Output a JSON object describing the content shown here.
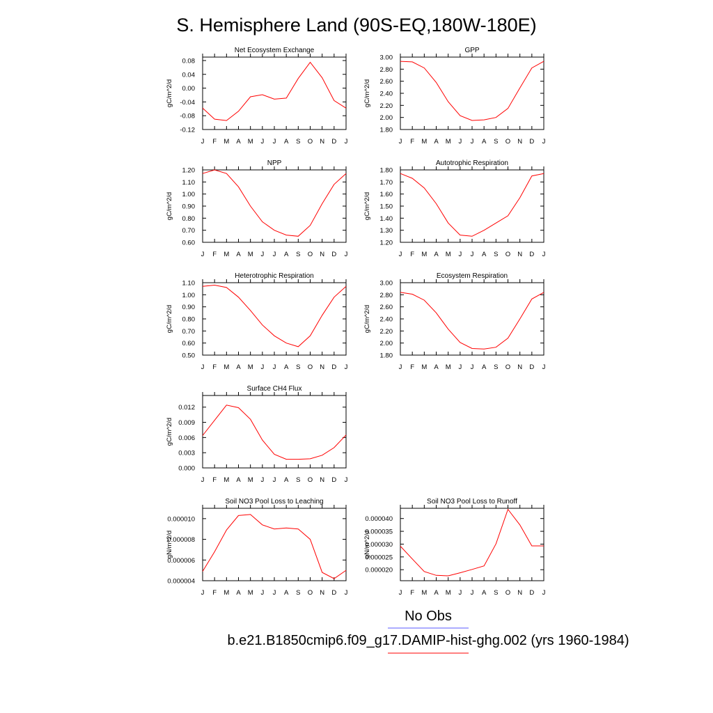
{
  "figure": {
    "title": "S. Hemisphere Land (90S-EQ,180W-180E)"
  },
  "legend": [
    {
      "label": "No Obs",
      "color": "#5a5aff"
    },
    {
      "label": "b.e21.B1850cmip6.f09_g17.DAMIP-hist-ghg.002 (yrs 1960-1984)",
      "color": "#ff0000"
    }
  ],
  "chart_data": [
    {
      "type": "line",
      "title": "Net Ecosystem Exchange",
      "ylabel": "gC/m^2/d",
      "categories": [
        "J",
        "F",
        "M",
        "A",
        "M",
        "J",
        "J",
        "A",
        "S",
        "O",
        "N",
        "D",
        "J"
      ],
      "ylim": [
        -0.12,
        0.09
      ],
      "yticks": [
        -0.12,
        -0.08,
        -0.04,
        0.0,
        0.04,
        0.08
      ],
      "ytick_labels": [
        "-0.12",
        "-0.08",
        "-0.04",
        "0.00",
        "0.04",
        "0.08"
      ],
      "series": [
        {
          "color": "#ff0000",
          "values": [
            -0.058,
            -0.09,
            -0.094,
            -0.067,
            -0.025,
            -0.019,
            -0.032,
            -0.029,
            0.028,
            0.075,
            0.03,
            -0.036,
            -0.058
          ]
        }
      ]
    },
    {
      "type": "line",
      "title": "GPP",
      "ylabel": "gC/m^2/d",
      "categories": [
        "J",
        "F",
        "M",
        "A",
        "M",
        "J",
        "J",
        "A",
        "S",
        "O",
        "N",
        "D",
        "J"
      ],
      "ylim": [
        1.8,
        3.0
      ],
      "yticks": [
        1.8,
        2.0,
        2.2,
        2.4,
        2.6,
        2.8,
        3.0
      ],
      "ytick_labels": [
        "1.80",
        "2.00",
        "2.20",
        "2.40",
        "2.60",
        "2.80",
        "3.00"
      ],
      "series": [
        {
          "color": "#ff0000",
          "values": [
            2.93,
            2.92,
            2.82,
            2.58,
            2.26,
            2.03,
            1.95,
            1.96,
            2.0,
            2.15,
            2.49,
            2.82,
            2.93
          ]
        }
      ]
    },
    {
      "type": "line",
      "title": "NPP",
      "ylabel": "gC/m^2/d",
      "categories": [
        "J",
        "F",
        "M",
        "A",
        "M",
        "J",
        "J",
        "A",
        "S",
        "O",
        "N",
        "D",
        "J"
      ],
      "ylim": [
        0.6,
        1.2
      ],
      "yticks": [
        0.6,
        0.7,
        0.8,
        0.9,
        1.0,
        1.1,
        1.2
      ],
      "ytick_labels": [
        "0.60",
        "0.70",
        "0.80",
        "0.90",
        "1.00",
        "1.10",
        "1.20"
      ],
      "series": [
        {
          "color": "#ff0000",
          "values": [
            1.17,
            1.2,
            1.17,
            1.06,
            0.9,
            0.77,
            0.7,
            0.66,
            0.65,
            0.74,
            0.92,
            1.08,
            1.17
          ]
        }
      ]
    },
    {
      "type": "line",
      "title": "Autotrophic Respiration",
      "ylabel": "gC/m^2/d",
      "categories": [
        "J",
        "F",
        "M",
        "A",
        "M",
        "J",
        "J",
        "A",
        "S",
        "O",
        "N",
        "D",
        "J"
      ],
      "ylim": [
        1.2,
        1.8
      ],
      "yticks": [
        1.2,
        1.3,
        1.4,
        1.5,
        1.6,
        1.7,
        1.8
      ],
      "ytick_labels": [
        "1.20",
        "1.30",
        "1.40",
        "1.50",
        "1.60",
        "1.70",
        "1.80"
      ],
      "series": [
        {
          "color": "#ff0000",
          "values": [
            1.77,
            1.73,
            1.65,
            1.52,
            1.36,
            1.26,
            1.25,
            1.3,
            1.36,
            1.42,
            1.57,
            1.75,
            1.77
          ]
        }
      ]
    },
    {
      "type": "line",
      "title": "Heterotrophic Respiration",
      "ylabel": "gC/m^2/d",
      "categories": [
        "J",
        "F",
        "M",
        "A",
        "M",
        "J",
        "J",
        "A",
        "S",
        "O",
        "N",
        "D",
        "J"
      ],
      "ylim": [
        0.5,
        1.1
      ],
      "yticks": [
        0.5,
        0.6,
        0.7,
        0.8,
        0.9,
        1.0,
        1.1
      ],
      "ytick_labels": [
        "0.50",
        "0.60",
        "0.70",
        "0.80",
        "0.90",
        "1.00",
        "1.10"
      ],
      "series": [
        {
          "color": "#ff0000",
          "values": [
            1.07,
            1.08,
            1.06,
            0.98,
            0.87,
            0.75,
            0.66,
            0.6,
            0.57,
            0.66,
            0.83,
            0.98,
            1.07
          ]
        }
      ]
    },
    {
      "type": "line",
      "title": "Ecosystem Respiration",
      "ylabel": "gC/m^2/d",
      "categories": [
        "J",
        "F",
        "M",
        "A",
        "M",
        "J",
        "J",
        "A",
        "S",
        "O",
        "N",
        "D",
        "J"
      ],
      "ylim": [
        1.8,
        3.0
      ],
      "yticks": [
        1.8,
        2.0,
        2.2,
        2.4,
        2.6,
        2.8,
        3.0
      ],
      "ytick_labels": [
        "1.80",
        "2.00",
        "2.20",
        "2.40",
        "2.60",
        "2.80",
        "3.00"
      ],
      "series": [
        {
          "color": "#ff0000",
          "values": [
            2.84,
            2.81,
            2.71,
            2.5,
            2.23,
            2.01,
            1.91,
            1.9,
            1.93,
            2.08,
            2.4,
            2.73,
            2.84
          ]
        }
      ]
    },
    {
      "type": "line",
      "title": "Surface CH4 Flux",
      "ylabel": "gC/m^2/d",
      "categories": [
        "J",
        "F",
        "M",
        "A",
        "M",
        "J",
        "J",
        "A",
        "S",
        "O",
        "N",
        "D",
        "J"
      ],
      "ylim": [
        0.0,
        0.0143
      ],
      "yticks": [
        0.0,
        0.003,
        0.006,
        0.009,
        0.012
      ],
      "ytick_labels": [
        "0.000",
        "0.003",
        "0.006",
        "0.009",
        "0.012"
      ],
      "series": [
        {
          "color": "#ff0000",
          "values": [
            0.0064,
            0.0094,
            0.0124,
            0.0119,
            0.0096,
            0.0055,
            0.0027,
            0.0017,
            0.0017,
            0.0018,
            0.0025,
            0.004,
            0.0065
          ]
        }
      ]
    },
    {
      "type": "line",
      "title": "Soil NO3 Pool Loss to Leaching",
      "ylabel": "gN/m^2/d",
      "categories": [
        "J",
        "F",
        "M",
        "A",
        "M",
        "J",
        "J",
        "A",
        "S",
        "O",
        "N",
        "D",
        "J"
      ],
      "ylim": [
        4e-06,
        1.1e-05
      ],
      "yticks": [
        4e-06,
        6e-06,
        8e-06,
        1e-05
      ],
      "ytick_labels": [
        "0.000004",
        "0.000006",
        "0.000008",
        "0.000010"
      ],
      "series": [
        {
          "color": "#ff0000",
          "values": [
            4.9e-06,
            6.8e-06,
            8.9e-06,
            1.03e-05,
            1.04e-05,
            9.4e-06,
            9e-06,
            9.1e-06,
            9e-06,
            8e-06,
            4.8e-06,
            4.2e-06,
            5e-06
          ]
        }
      ]
    },
    {
      "type": "line",
      "title": "Soil NO3 Pool Loss to Runoff",
      "ylabel": "gN/m^2/d",
      "categories": [
        "J",
        "F",
        "M",
        "A",
        "M",
        "J",
        "J",
        "A",
        "S",
        "O",
        "N",
        "D",
        "J"
      ],
      "ylim": [
        1.57e-05,
        4.4e-05
      ],
      "yticks": [
        2e-05,
        2.5e-05,
        3e-05,
        3.5e-05,
        4e-05
      ],
      "ytick_labels": [
        "0.000020",
        "0.000025",
        "0.000030",
        "0.000035",
        "0.000040"
      ],
      "series": [
        {
          "color": "#ff0000",
          "values": [
            2.92e-05,
            2.42e-05,
            1.93e-05,
            1.78e-05,
            1.76e-05,
            1.88e-05,
            2.01e-05,
            2.15e-05,
            3.01e-05,
            4.36e-05,
            3.75e-05,
            2.93e-05,
            2.93e-05
          ]
        }
      ]
    }
  ]
}
